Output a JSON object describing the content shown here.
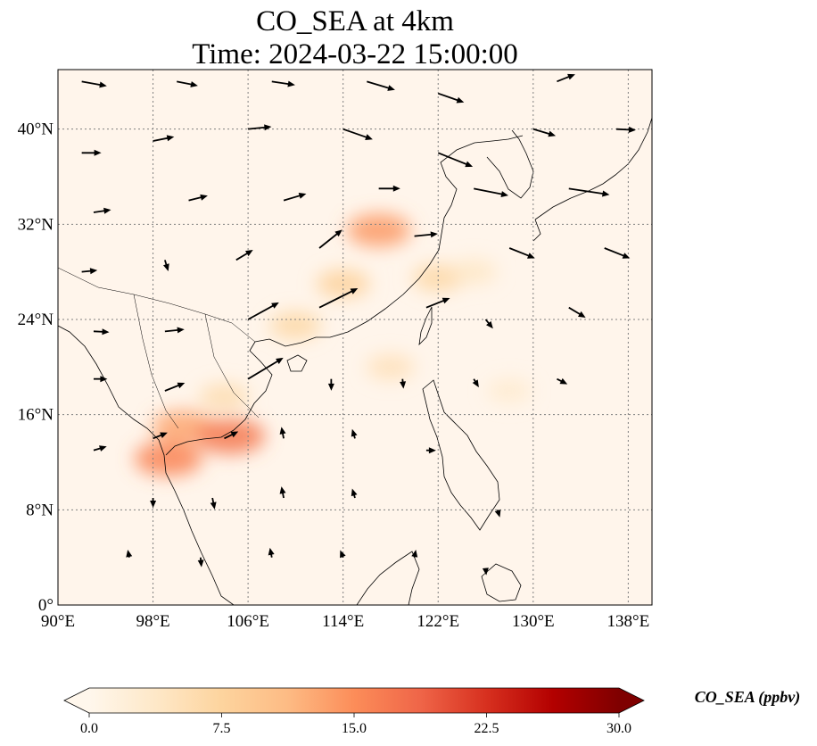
{
  "title": {
    "line1": "CO_SEA at 4km",
    "line2": "Time: 2024-03-22 15:00:00"
  },
  "map": {
    "lon_range": [
      90,
      140
    ],
    "lat_range": [
      0,
      45
    ],
    "lon_ticks": [
      {
        "value": 90,
        "label": "90°E"
      },
      {
        "value": 98,
        "label": "98°E"
      },
      {
        "value": 106,
        "label": "106°E"
      },
      {
        "value": 114,
        "label": "114°E"
      },
      {
        "value": 122,
        "label": "122°E"
      },
      {
        "value": 130,
        "label": "130°E"
      },
      {
        "value": 138,
        "label": "138°E"
      }
    ],
    "lat_ticks": [
      {
        "value": 0,
        "label": "0°"
      },
      {
        "value": 8,
        "label": "8°N"
      },
      {
        "value": 16,
        "label": "16°N"
      },
      {
        "value": 24,
        "label": "24°N"
      },
      {
        "value": 32,
        "label": "32°N"
      },
      {
        "value": 40,
        "label": "40°N"
      }
    ],
    "gridlines": true,
    "colors": {
      "background": "#fff5eb",
      "coastline": "#000000",
      "gridline": "#7f7f7f",
      "vector": "#000000"
    }
  },
  "colorbar": {
    "label": "CO_SEA (ppbv)",
    "min": 0,
    "max": 30,
    "extend": "both",
    "colormap": "OrRd",
    "stops": [
      "#fff7ec",
      "#fee8c8",
      "#fdd49e",
      "#fdbb84",
      "#fc8d59",
      "#ef6548",
      "#d7301f",
      "#b30000",
      "#7f0000"
    ],
    "ticks": [
      {
        "value": 0,
        "label": "0.0"
      },
      {
        "value": 7.5,
        "label": "7.5"
      },
      {
        "value": 15,
        "label": "15.0"
      },
      {
        "value": 22.5,
        "label": "22.5"
      },
      {
        "value": 30,
        "label": "30.0"
      }
    ]
  },
  "field_plumes": [
    {
      "lon": 117,
      "lat": 31.5,
      "value": 14
    },
    {
      "lon": 114,
      "lat": 27,
      "value": 8
    },
    {
      "lon": 122,
      "lat": 27.5,
      "value": 7
    },
    {
      "lon": 110,
      "lat": 23.5,
      "value": 7
    },
    {
      "lon": 104,
      "lat": 17.5,
      "value": 6
    },
    {
      "lon": 100.5,
      "lat": 15,
      "value": 13
    },
    {
      "lon": 104.5,
      "lat": 14.2,
      "value": 17
    },
    {
      "lon": 99.3,
      "lat": 12.3,
      "value": 16
    },
    {
      "lon": 118,
      "lat": 20,
      "value": 5
    },
    {
      "lon": 128,
      "lat": 18,
      "value": 3
    },
    {
      "lon": 125,
      "lat": 28,
      "value": 4
    }
  ],
  "wind_vectors": [
    {
      "lon": 92,
      "lat": 44,
      "u": 1.0,
      "v": -0.18,
      "speed": 2.6
    },
    {
      "lon": 100,
      "lat": 44,
      "u": 1.0,
      "v": -0.2,
      "speed": 2.2
    },
    {
      "lon": 108,
      "lat": 44,
      "u": 1.0,
      "v": -0.15,
      "speed": 2.4
    },
    {
      "lon": 116,
      "lat": 44,
      "u": 1.0,
      "v": -0.3,
      "speed": 3.0
    },
    {
      "lon": 122,
      "lat": 43,
      "u": 1.0,
      "v": -0.35,
      "speed": 2.8
    },
    {
      "lon": 132,
      "lat": 44,
      "u": 1.0,
      "v": 0.4,
      "speed": 2.0
    },
    {
      "lon": 92,
      "lat": 38,
      "u": 1.0,
      "v": 0.0,
      "speed": 2.0
    },
    {
      "lon": 98,
      "lat": 39,
      "u": 1.0,
      "v": 0.2,
      "speed": 2.2
    },
    {
      "lon": 106,
      "lat": 40,
      "u": 1.0,
      "v": 0.1,
      "speed": 2.4
    },
    {
      "lon": 114,
      "lat": 40,
      "u": 1.0,
      "v": -0.35,
      "speed": 3.2
    },
    {
      "lon": 122,
      "lat": 38,
      "u": 1.0,
      "v": -0.4,
      "speed": 3.8
    },
    {
      "lon": 130,
      "lat": 40,
      "u": 1.0,
      "v": -0.3,
      "speed": 2.4
    },
    {
      "lon": 137,
      "lat": 40,
      "u": 1.0,
      "v": -0.05,
      "speed": 2.0
    },
    {
      "lon": 93,
      "lat": 33,
      "u": 1.0,
      "v": 0.15,
      "speed": 1.8
    },
    {
      "lon": 101,
      "lat": 34,
      "u": 1.0,
      "v": 0.25,
      "speed": 2.0
    },
    {
      "lon": 109,
      "lat": 34,
      "u": 1.0,
      "v": 0.3,
      "speed": 2.4
    },
    {
      "lon": 117,
      "lat": 35,
      "u": 1.0,
      "v": 0.0,
      "speed": 2.2
    },
    {
      "lon": 125,
      "lat": 35,
      "u": 1.0,
      "v": -0.2,
      "speed": 3.6
    },
    {
      "lon": 133,
      "lat": 35,
      "u": 1.0,
      "v": -0.15,
      "speed": 4.2
    },
    {
      "lon": 92,
      "lat": 28,
      "u": 1.0,
      "v": 0.1,
      "speed": 1.6
    },
    {
      "lon": 99,
      "lat": 29,
      "u": 0.3,
      "v": -1.0,
      "speed": 1.2
    },
    {
      "lon": 105,
      "lat": 29,
      "u": 1.0,
      "v": 0.6,
      "speed": 2.0
    },
    {
      "lon": 112,
      "lat": 30,
      "u": 1.0,
      "v": 0.8,
      "speed": 3.0
    },
    {
      "lon": 120,
      "lat": 31,
      "u": 1.0,
      "v": 0.1,
      "speed": 2.4
    },
    {
      "lon": 128,
      "lat": 30,
      "u": 1.0,
      "v": -0.4,
      "speed": 2.8
    },
    {
      "lon": 136,
      "lat": 30,
      "u": 1.0,
      "v": -0.4,
      "speed": 2.8
    },
    {
      "lon": 93,
      "lat": 23,
      "u": 1.0,
      "v": -0.05,
      "speed": 1.6
    },
    {
      "lon": 99,
      "lat": 23,
      "u": 1.0,
      "v": 0.1,
      "speed": 2.0
    },
    {
      "lon": 106,
      "lat": 24,
      "u": 1.0,
      "v": 0.55,
      "speed": 3.6
    },
    {
      "lon": 112,
      "lat": 25,
      "u": 1.0,
      "v": 0.5,
      "speed": 4.4
    },
    {
      "lon": 121,
      "lat": 25,
      "u": 1.0,
      "v": 0.4,
      "speed": 2.6
    },
    {
      "lon": 126,
      "lat": 24,
      "u": 0.8,
      "v": -1.0,
      "speed": 1.2
    },
    {
      "lon": 133,
      "lat": 25,
      "u": 1.0,
      "v": -0.6,
      "speed": 2.0
    },
    {
      "lon": 93,
      "lat": 19,
      "u": 1.0,
      "v": 0.0,
      "speed": 1.4
    },
    {
      "lon": 99,
      "lat": 18,
      "u": 1.0,
      "v": 0.4,
      "speed": 2.2
    },
    {
      "lon": 106,
      "lat": 19,
      "u": 1.0,
      "v": 0.6,
      "speed": 4.2
    },
    {
      "lon": 113,
      "lat": 19,
      "u": 0.0,
      "v": -1.0,
      "speed": 1.2
    },
    {
      "lon": 119,
      "lat": 19,
      "u": 0.1,
      "v": -1.0,
      "speed": 1.0
    },
    {
      "lon": 125,
      "lat": 19,
      "u": 0.6,
      "v": -1.0,
      "speed": 1.0
    },
    {
      "lon": 132,
      "lat": 19,
      "u": 1.0,
      "v": -0.5,
      "speed": 1.2
    },
    {
      "lon": 93,
      "lat": 13,
      "u": 1.0,
      "v": 0.3,
      "speed": 1.4
    },
    {
      "lon": 98,
      "lat": 14,
      "u": 1.0,
      "v": 0.4,
      "speed": 1.6
    },
    {
      "lon": 104,
      "lat": 14,
      "u": 1.0,
      "v": 0.5,
      "speed": 1.6
    },
    {
      "lon": 109,
      "lat": 14,
      "u": -0.2,
      "v": 1.0,
      "speed": 1.2
    },
    {
      "lon": 115,
      "lat": 14,
      "u": -0.3,
      "v": 1.0,
      "speed": 1.0
    },
    {
      "lon": 121,
      "lat": 13,
      "u": 1.0,
      "v": 0.0,
      "speed": 1.0
    },
    {
      "lon": 98,
      "lat": 9,
      "u": 0.0,
      "v": -1.0,
      "speed": 1.0
    },
    {
      "lon": 103,
      "lat": 9,
      "u": 0.2,
      "v": -1.0,
      "speed": 1.2
    },
    {
      "lon": 109,
      "lat": 9,
      "u": -0.2,
      "v": 1.0,
      "speed": 1.2
    },
    {
      "lon": 115,
      "lat": 9,
      "u": -0.3,
      "v": 1.0,
      "speed": 1.0
    },
    {
      "lon": 127,
      "lat": 8,
      "u": 0.3,
      "v": -1.0,
      "speed": 0.8
    },
    {
      "lon": 96,
      "lat": 4,
      "u": -0.2,
      "v": 1.0,
      "speed": 0.8
    },
    {
      "lon": 102,
      "lat": 4,
      "u": 0.1,
      "v": -1.0,
      "speed": 1.0
    },
    {
      "lon": 108,
      "lat": 4,
      "u": -0.2,
      "v": 1.0,
      "speed": 1.0
    },
    {
      "lon": 114,
      "lat": 4,
      "u": -0.4,
      "v": 1.0,
      "speed": 0.8
    },
    {
      "lon": 120,
      "lat": 4,
      "u": 0.2,
      "v": 1.0,
      "speed": 0.8
    },
    {
      "lon": 126,
      "lat": 3,
      "u": 0.1,
      "v": -1.0,
      "speed": 0.6
    }
  ]
}
